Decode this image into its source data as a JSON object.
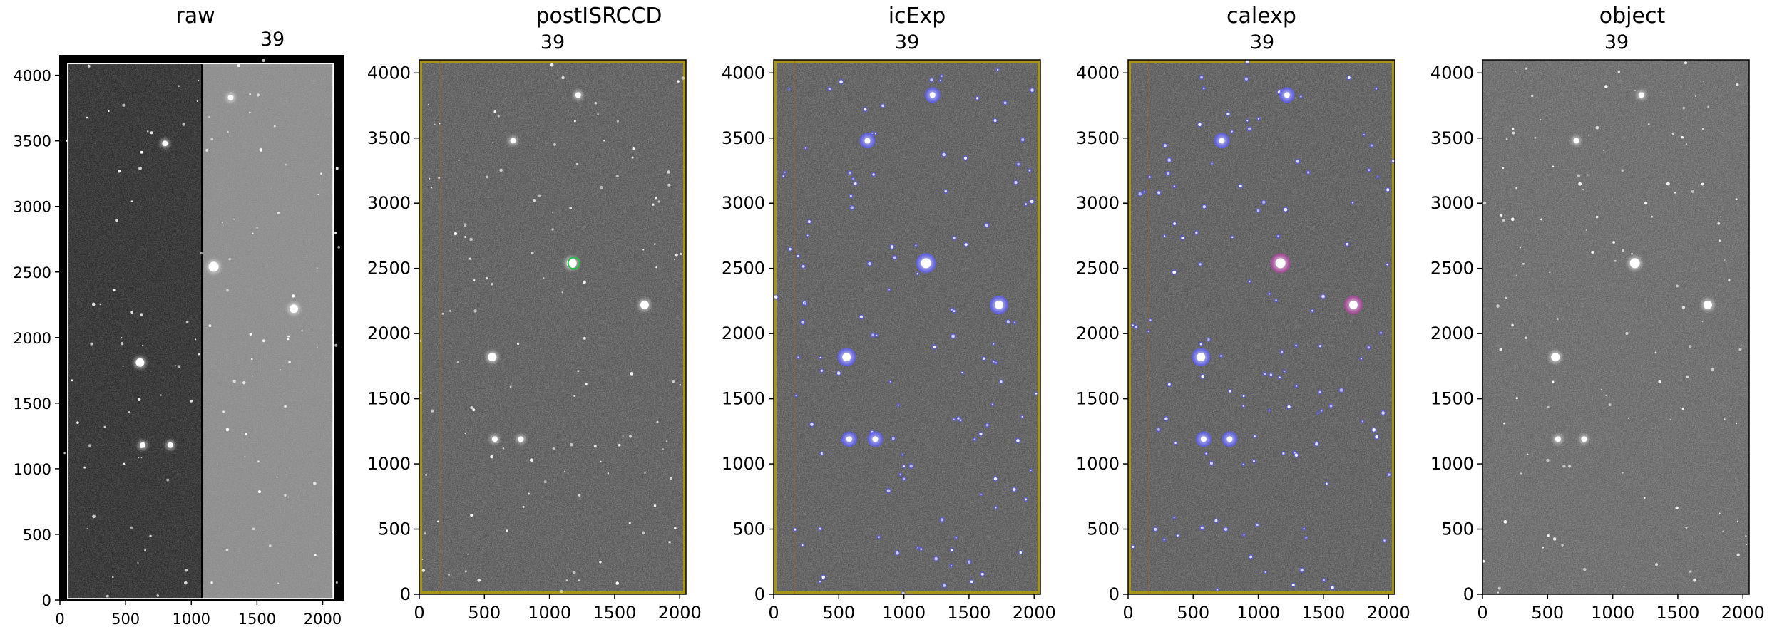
{
  "colors": {
    "background": "#ffffff",
    "mask_border": "#b8a000",
    "detection_mask": "#5a5aff",
    "footprint_mask": "#b040a0",
    "peak_marker": "#20c040"
  },
  "chart_data": [
    {
      "type": "heatmap",
      "title": "raw",
      "label": "39",
      "xlim": [
        0,
        2160
      ],
      "ylim": [
        0,
        4150
      ],
      "xticks": [
        0,
        500,
        1000,
        1500,
        2000
      ],
      "yticks": [
        0,
        500,
        1000,
        1500,
        2000,
        2500,
        3000,
        3500,
        4000
      ],
      "colormap": "gray",
      "style": "raw",
      "amp_boundary_x": 1080,
      "bright_sources": [
        [
          1170,
          2540
        ],
        [
          1780,
          2220
        ],
        [
          610,
          1810
        ],
        [
          630,
          1180
        ],
        [
          840,
          1180
        ],
        [
          800,
          3480
        ],
        [
          1300,
          3830
        ]
      ]
    },
    {
      "type": "heatmap",
      "title": "postISRCCD",
      "label": "39",
      "xlim": [
        0,
        2048
      ],
      "ylim": [
        0,
        4100
      ],
      "xticks": [
        0,
        500,
        1000,
        1500,
        2000
      ],
      "yticks": [
        0,
        500,
        1000,
        1500,
        2000,
        2500,
        3000,
        3500,
        4000
      ],
      "colormap": "gray",
      "style": "post",
      "bright_sources": [
        [
          1170,
          2540
        ],
        [
          1730,
          2220
        ],
        [
          560,
          1820
        ],
        [
          580,
          1190
        ],
        [
          780,
          1190
        ],
        [
          720,
          3480
        ],
        [
          1220,
          3830
        ]
      ]
    },
    {
      "type": "heatmap",
      "title": "icExp",
      "label": "39",
      "xlim": [
        0,
        2048
      ],
      "ylim": [
        0,
        4100
      ],
      "xticks": [
        0,
        500,
        1000,
        1500,
        2000
      ],
      "yticks": [
        0,
        500,
        1000,
        1500,
        2000,
        2500,
        3000,
        3500,
        4000
      ],
      "colormap": "gray",
      "style": "ic",
      "bright_sources": [
        [
          1170,
          2540
        ],
        [
          1730,
          2220
        ],
        [
          560,
          1820
        ],
        [
          580,
          1190
        ],
        [
          780,
          1190
        ],
        [
          720,
          3480
        ],
        [
          1220,
          3830
        ]
      ]
    },
    {
      "type": "heatmap",
      "title": "calexp",
      "label": "39",
      "xlim": [
        0,
        2048
      ],
      "ylim": [
        0,
        4100
      ],
      "xticks": [
        0,
        500,
        1000,
        1500,
        2000
      ],
      "yticks": [
        0,
        500,
        1000,
        1500,
        2000,
        2500,
        3000,
        3500,
        4000
      ],
      "colormap": "gray",
      "style": "cal",
      "bright_sources": [
        [
          1170,
          2540
        ],
        [
          1730,
          2220
        ],
        [
          560,
          1820
        ],
        [
          580,
          1190
        ],
        [
          780,
          1190
        ],
        [
          720,
          3480
        ],
        [
          1220,
          3830
        ]
      ]
    },
    {
      "type": "heatmap",
      "title": "object",
      "label": "39",
      "xlim": [
        0,
        2048
      ],
      "ylim": [
        0,
        4100
      ],
      "xticks": [
        0,
        500,
        1000,
        1500,
        2000
      ],
      "yticks": [
        0,
        500,
        1000,
        1500,
        2000,
        2500,
        3000,
        3500,
        4000
      ],
      "colormap": "gray",
      "style": "object",
      "bright_sources": [
        [
          1170,
          2540
        ],
        [
          1730,
          2220
        ],
        [
          560,
          1820
        ],
        [
          580,
          1190
        ],
        [
          780,
          1190
        ],
        [
          720,
          3480
        ],
        [
          1220,
          3830
        ]
      ]
    }
  ]
}
